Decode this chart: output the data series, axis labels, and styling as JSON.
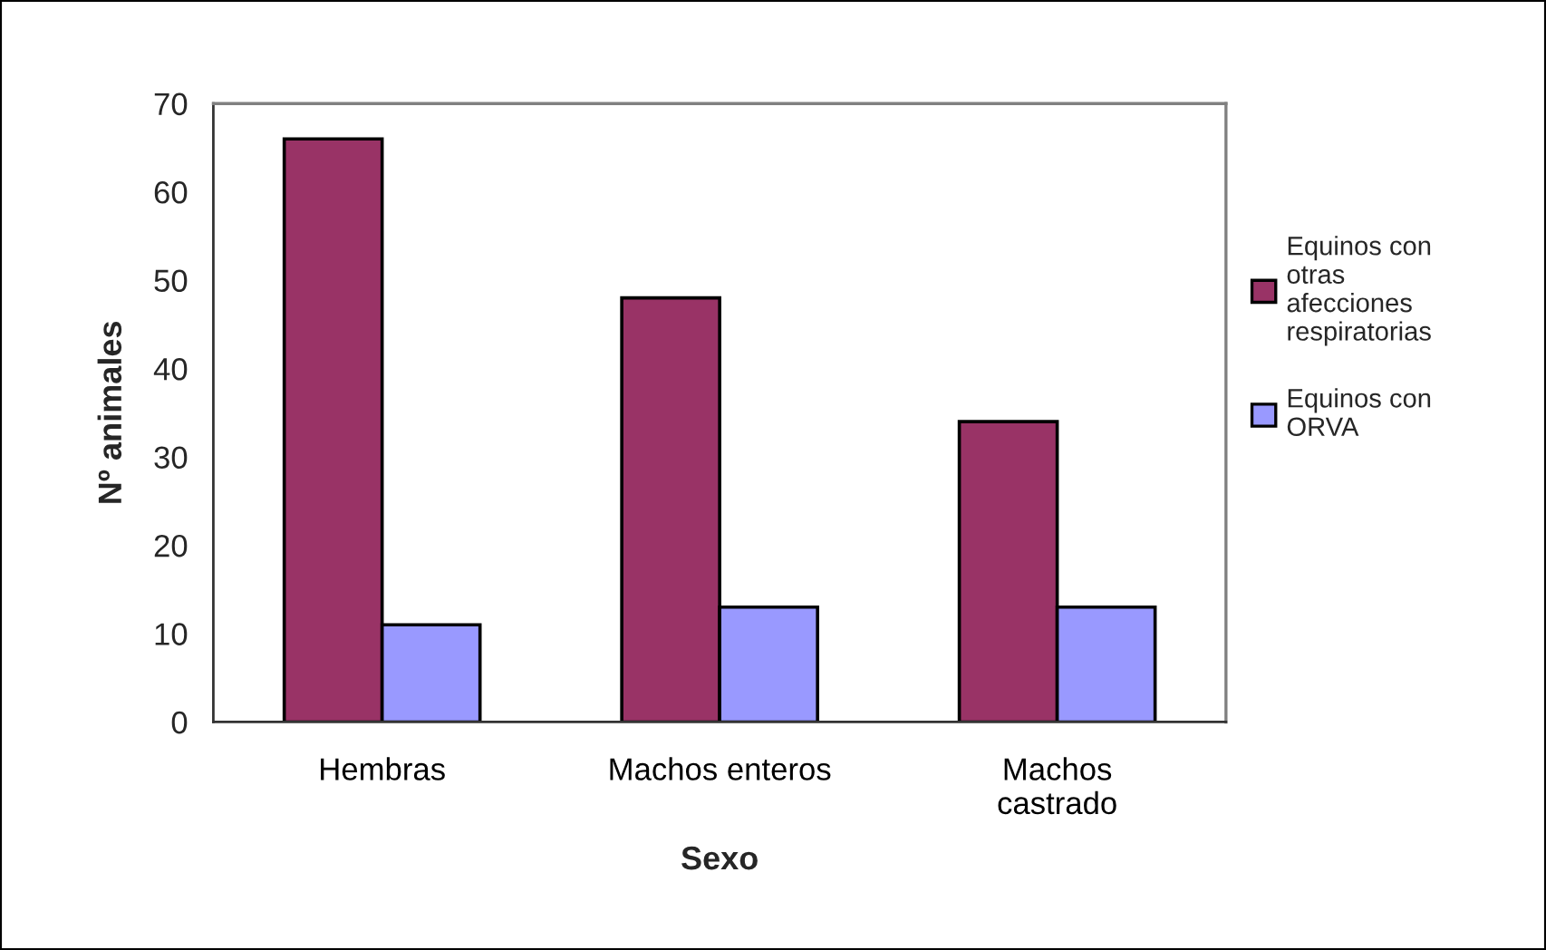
{
  "chart_data": {
    "type": "bar",
    "xlabel": "Sexo",
    "ylabel": "Nº animales",
    "categories": [
      "Hembras",
      "Machos enteros",
      "Machos\ncastrado"
    ],
    "series": [
      {
        "name": "Equinos con\notras\nafecciones\nrespiratorias",
        "color": "#993366",
        "values": [
          66,
          48,
          34
        ]
      },
      {
        "name": "Equinos con\nORVA",
        "color": "#9999ff",
        "values": [
          11,
          13,
          13
        ]
      }
    ],
    "ylim": [
      0,
      70
    ],
    "yticks": [
      0,
      10,
      20,
      30,
      40,
      50,
      60,
      70
    ],
    "legend": "right"
  }
}
